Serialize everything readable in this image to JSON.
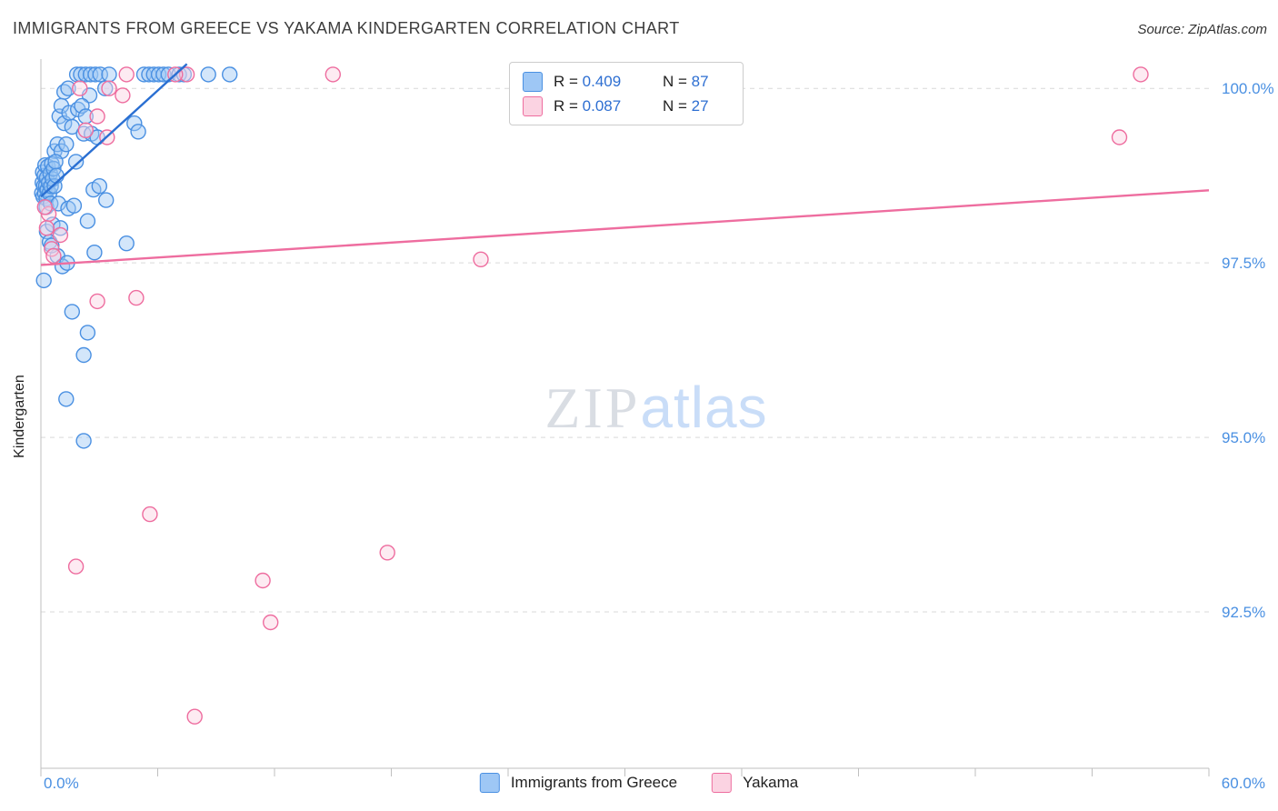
{
  "header": {
    "title": "IMMIGRANTS FROM GREECE VS YAKAMA KINDERGARTEN CORRELATION CHART",
    "source": "Source: ZipAtlas.com"
  },
  "watermark": {
    "zip": "ZIP",
    "atlas": "atlas"
  },
  "legend_box": {
    "r_prefix": "R = ",
    "n_prefix": "N = ",
    "rows": [
      {
        "r": "0.409",
        "n": "87"
      },
      {
        "r": "0.087",
        "n": "27"
      }
    ]
  },
  "bottom_legend": {
    "items": [
      {
        "label": "Immigrants from Greece"
      },
      {
        "label": "Yakama"
      }
    ]
  },
  "colors": {
    "axis_labels": "#4a90e2",
    "grid": "#d9d9d9",
    "axis_line": "#bfbfbf",
    "number_accent": "#2e6fd2",
    "watermark_zip": "#d9dde3",
    "watermark_atlas": "#c9ddf8"
  },
  "chart_data": {
    "type": "scatter",
    "title": "IMMIGRANTS FROM GREECE VS YAKAMA KINDERGARTEN CORRELATION CHART",
    "xlabel": "",
    "ylabel": "Kindergarten",
    "xlim": [
      0,
      60
    ],
    "ylim": [
      90.26,
      100.42
    ],
    "x_min_label": "0.0%",
    "x_max_label": "60.0%",
    "x_tick_count": 11,
    "grid": "horizontal-dashed",
    "legend_position": "bottom-center",
    "y_gridlines": [
      {
        "value": 100.0,
        "label": "100.0%"
      },
      {
        "value": 97.5,
        "label": "97.5%"
      },
      {
        "value": 95.0,
        "label": "95.0%"
      },
      {
        "value": 92.5,
        "label": "92.5%"
      }
    ],
    "series": [
      {
        "id": "greece",
        "name": "Immigrants from Greece",
        "R": 0.409,
        "N": 87,
        "color": "#4a90e2",
        "fill": "#9ec7f5",
        "trend_color": "#2a6fd2",
        "trend": {
          "x1": 0,
          "y1": 98.45,
          "x2": 7.5,
          "y2": 100.35
        },
        "points": [
          [
            1.85,
            100.2
          ],
          [
            2.05,
            100.2
          ],
          [
            2.3,
            100.2
          ],
          [
            2.55,
            100.2
          ],
          [
            2.8,
            100.2
          ],
          [
            3.05,
            100.2
          ],
          [
            3.5,
            100.2
          ],
          [
            5.3,
            100.2
          ],
          [
            5.55,
            100.2
          ],
          [
            5.8,
            100.2
          ],
          [
            6.05,
            100.2
          ],
          [
            6.3,
            100.2
          ],
          [
            6.55,
            100.2
          ],
          [
            7.1,
            100.2
          ],
          [
            7.35,
            100.2
          ],
          [
            8.6,
            100.2
          ],
          [
            9.7,
            100.2
          ],
          [
            1.2,
            99.95
          ],
          [
            1.4,
            100.0
          ],
          [
            2.5,
            99.9
          ],
          [
            3.3,
            100.0
          ],
          [
            0.95,
            99.6
          ],
          [
            1.05,
            99.75
          ],
          [
            1.2,
            99.5
          ],
          [
            1.45,
            99.65
          ],
          [
            1.6,
            99.45
          ],
          [
            1.9,
            99.7
          ],
          [
            2.1,
            99.75
          ],
          [
            2.3,
            99.6
          ],
          [
            2.2,
            99.35
          ],
          [
            2.6,
            99.35
          ],
          [
            2.9,
            99.3
          ],
          [
            4.8,
            99.5
          ],
          [
            5.0,
            99.38
          ],
          [
            0.7,
            99.1
          ],
          [
            0.85,
            99.2
          ],
          [
            1.05,
            99.1
          ],
          [
            1.3,
            99.2
          ],
          [
            0.05,
            98.5
          ],
          [
            0.08,
            98.65
          ],
          [
            0.1,
            98.8
          ],
          [
            0.12,
            98.45
          ],
          [
            0.15,
            98.6
          ],
          [
            0.18,
            98.75
          ],
          [
            0.2,
            98.5
          ],
          [
            0.22,
            98.9
          ],
          [
            0.25,
            98.6
          ],
          [
            0.28,
            98.42
          ],
          [
            0.3,
            98.72
          ],
          [
            0.33,
            98.55
          ],
          [
            0.36,
            98.88
          ],
          [
            0.4,
            98.65
          ],
          [
            0.44,
            98.5
          ],
          [
            0.48,
            98.78
          ],
          [
            0.52,
            98.6
          ],
          [
            0.56,
            98.92
          ],
          [
            0.6,
            98.7
          ],
          [
            0.65,
            98.85
          ],
          [
            0.7,
            98.6
          ],
          [
            0.75,
            98.95
          ],
          [
            0.8,
            98.75
          ],
          [
            0.28,
            98.3
          ],
          [
            0.5,
            98.35
          ],
          [
            0.9,
            98.35
          ],
          [
            1.4,
            98.28
          ],
          [
            1.7,
            98.32
          ],
          [
            0.3,
            97.95
          ],
          [
            0.6,
            98.05
          ],
          [
            1.0,
            98.0
          ],
          [
            2.4,
            98.1
          ],
          [
            0.85,
            97.6
          ],
          [
            2.75,
            97.65
          ],
          [
            4.4,
            97.78
          ],
          [
            0.45,
            97.8
          ],
          [
            0.55,
            97.75
          ],
          [
            1.1,
            97.45
          ],
          [
            1.35,
            97.5
          ],
          [
            0.15,
            97.25
          ],
          [
            1.6,
            96.8
          ],
          [
            2.4,
            96.5
          ],
          [
            2.2,
            96.18
          ],
          [
            1.3,
            95.55
          ],
          [
            2.2,
            94.95
          ],
          [
            3.35,
            98.4
          ],
          [
            2.7,
            98.55
          ],
          [
            3.0,
            98.6
          ],
          [
            1.8,
            98.95
          ]
        ]
      },
      {
        "id": "yakama",
        "name": "Yakama",
        "R": 0.087,
        "N": 27,
        "color": "#ee6d9f",
        "fill": "#fbd3e2",
        "trend_color": "#ee6d9f",
        "trend": {
          "x1": 0,
          "y1": 97.47,
          "x2": 60,
          "y2": 98.54
        },
        "points": [
          [
            3.5,
            100.0
          ],
          [
            4.4,
            100.2
          ],
          [
            7.5,
            100.2
          ],
          [
            15.0,
            100.2
          ],
          [
            56.5,
            100.2
          ],
          [
            2.0,
            100.0
          ],
          [
            6.9,
            100.2
          ],
          [
            4.2,
            99.9
          ],
          [
            2.9,
            99.6
          ],
          [
            3.4,
            99.3
          ],
          [
            2.3,
            99.4
          ],
          [
            55.4,
            99.3
          ],
          [
            0.4,
            98.2
          ],
          [
            0.3,
            98.0
          ],
          [
            0.2,
            98.3
          ],
          [
            0.55,
            97.7
          ],
          [
            0.65,
            97.6
          ],
          [
            1.0,
            97.9
          ],
          [
            22.6,
            97.55
          ],
          [
            2.9,
            96.95
          ],
          [
            4.9,
            97.0
          ],
          [
            5.6,
            93.9
          ],
          [
            1.8,
            93.15
          ],
          [
            17.8,
            93.35
          ],
          [
            11.4,
            92.95
          ],
          [
            11.8,
            92.35
          ],
          [
            7.9,
            91.0
          ]
        ]
      }
    ]
  }
}
